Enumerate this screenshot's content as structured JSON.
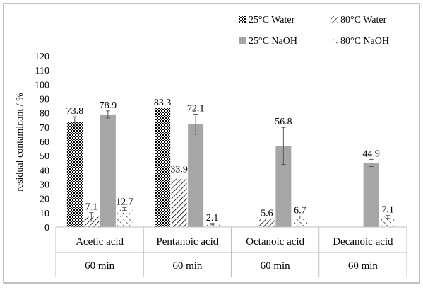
{
  "chart_data": {
    "type": "bar",
    "title": "",
    "ylabel": "residual contaminant / %",
    "xlabel": "",
    "ylim": [
      0,
      120
    ],
    "yticks": [
      0,
      10,
      20,
      30,
      40,
      50,
      60,
      70,
      80,
      90,
      100,
      110,
      120
    ],
    "grid": false,
    "legend_position": "top-right",
    "categories": [
      "Acetic acid",
      "Pentanoic acid",
      "Octanoic acid",
      "Decanoic acid"
    ],
    "category_sublabels": [
      "60 min",
      "60 min",
      "60 min",
      "60 min"
    ],
    "series": [
      {
        "name": "25°C Water",
        "pattern": "crosshatch",
        "color": "#000000",
        "values": [
          73.8,
          83.3,
          null,
          null
        ],
        "errors": [
          3.5,
          0,
          null,
          null
        ],
        "labels": [
          "73.8",
          "83.3",
          "",
          ""
        ]
      },
      {
        "name": "80°C Water",
        "pattern": "dense-diagonal",
        "color": "#000000",
        "values": [
          7.1,
          33.9,
          5.6,
          null
        ],
        "errors": [
          3.0,
          2.5,
          0,
          null
        ],
        "labels": [
          "7.1",
          "33.9",
          "5.6",
          ""
        ]
      },
      {
        "name": "25°C NaOH",
        "pattern": "solid",
        "color": "#a6a6a6",
        "values": [
          78.9,
          72.1,
          56.8,
          44.9
        ],
        "errors": [
          2.5,
          7.0,
          13.0,
          2.5
        ],
        "labels": [
          "78.9",
          "72.1",
          "56.8",
          "44.9"
        ]
      },
      {
        "name": "80°C NaOH",
        "pattern": "sparse-dash",
        "color": "#000000",
        "values": [
          12.7,
          2.1,
          6.7,
          7.1
        ],
        "errors": [
          1.0,
          0.5,
          1.0,
          1.0
        ],
        "labels": [
          "12.7",
          "2.1",
          "6.7",
          "7.1"
        ]
      }
    ]
  }
}
